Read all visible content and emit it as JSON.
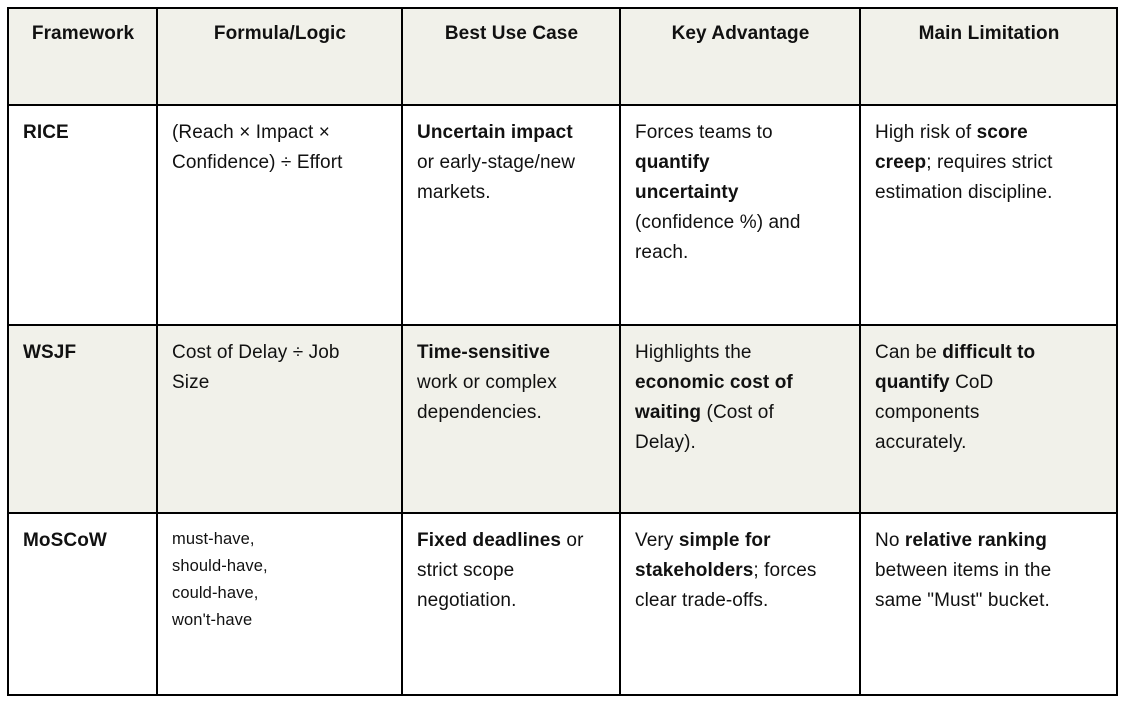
{
  "colors": {
    "row_shade": "#f1f1ea",
    "row_plain": "#ffffff",
    "border": "#000000",
    "text": "#111111"
  },
  "table": {
    "columns": [
      "Framework",
      "Formula/Logic",
      "Best Use Case",
      "Key Advantage",
      "Main Limitation"
    ],
    "rows": [
      {
        "framework": "RICE",
        "shaded": false,
        "cells": [
          {
            "small": false,
            "segments": [
              {
                "t": "(Reach × Impact ×\nConfidence) ÷ Effort",
                "b": false
              }
            ]
          },
          {
            "small": false,
            "segments": [
              {
                "t": "Uncertain impact",
                "b": true
              },
              {
                "t": "\nor early-stage/new\nmarkets.",
                "b": false
              }
            ]
          },
          {
            "small": false,
            "segments": [
              {
                "t": "Forces teams to\n",
                "b": false
              },
              {
                "t": "quantify\nuncertainty",
                "b": true
              },
              {
                "t": "\n(confidence %) and\nreach.",
                "b": false
              }
            ]
          },
          {
            "small": false,
            "segments": [
              {
                "t": "High risk of ",
                "b": false
              },
              {
                "t": "score\ncreep",
                "b": true
              },
              {
                "t": "; requires strict\nestimation discipline.",
                "b": false
              }
            ]
          }
        ]
      },
      {
        "framework": "WSJF",
        "shaded": true,
        "cells": [
          {
            "small": false,
            "segments": [
              {
                "t": "Cost of Delay ÷ Job\nSize",
                "b": false
              }
            ]
          },
          {
            "small": false,
            "segments": [
              {
                "t": "Time-sensitive",
                "b": true
              },
              {
                "t": "\nwork or complex\ndependencies.",
                "b": false
              }
            ]
          },
          {
            "small": false,
            "segments": [
              {
                "t": "Highlights the\n",
                "b": false
              },
              {
                "t": "economic cost of\nwaiting",
                "b": true
              },
              {
                "t": " (Cost of\nDelay).",
                "b": false
              }
            ]
          },
          {
            "small": false,
            "segments": [
              {
                "t": "Can be ",
                "b": false
              },
              {
                "t": "difficult to\nquantify",
                "b": true
              },
              {
                "t": " CoD\ncomponents\naccurately.",
                "b": false
              }
            ]
          }
        ]
      },
      {
        "framework": "MoSCoW",
        "shaded": false,
        "cells": [
          {
            "small": true,
            "segments": [
              {
                "t": "must-have,\nshould-have,\ncould-have,\nwon't-have",
                "b": false
              }
            ]
          },
          {
            "small": false,
            "segments": [
              {
                "t": "Fixed deadlines",
                "b": true
              },
              {
                "t": " or\nstrict scope\nnegotiation.",
                "b": false
              }
            ]
          },
          {
            "small": false,
            "segments": [
              {
                "t": "Very ",
                "b": false
              },
              {
                "t": "simple for\nstakeholders",
                "b": true
              },
              {
                "t": "; forces\nclear trade-offs.",
                "b": false
              }
            ]
          },
          {
            "small": false,
            "segments": [
              {
                "t": "No ",
                "b": false
              },
              {
                "t": "relative ranking",
                "b": true
              },
              {
                "t": "\nbetween items in the\nsame \"Must\" bucket.",
                "b": false
              }
            ]
          }
        ]
      }
    ]
  }
}
